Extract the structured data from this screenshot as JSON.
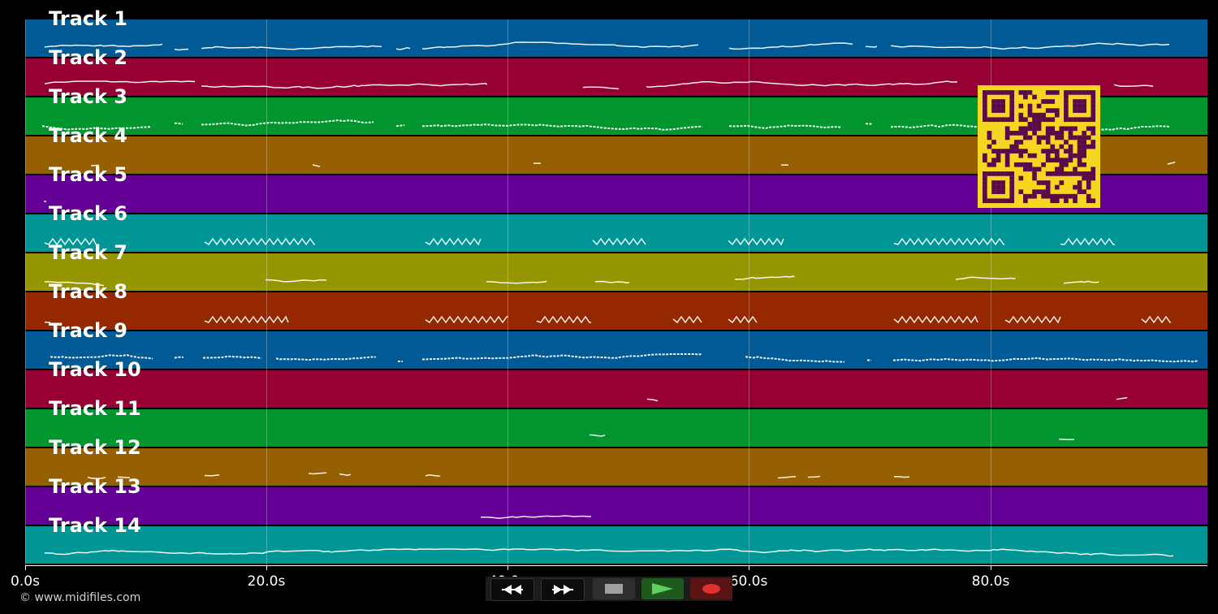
{
  "tracks": [
    {
      "label": "Track 1",
      "color": "#005a96"
    },
    {
      "label": "Track 2",
      "color": "#960032"
    },
    {
      "label": "Track 3",
      "color": "#00962d"
    },
    {
      "label": "Track 4",
      "color": "#965f00"
    },
    {
      "label": "Track 5",
      "color": "#640096"
    },
    {
      "label": "Track 6",
      "color": "#009696"
    },
    {
      "label": "Track 7",
      "color": "#969600"
    },
    {
      "label": "Track 8",
      "color": "#962800"
    },
    {
      "label": "Track 9",
      "color": "#005a96"
    },
    {
      "label": "Track 10",
      "color": "#960032"
    },
    {
      "label": "Track 11",
      "color": "#00962d"
    },
    {
      "label": "Track 12",
      "color": "#965f00"
    },
    {
      "label": "Track 13",
      "color": "#640096"
    },
    {
      "label": "Track 14",
      "color": "#009696"
    }
  ],
  "axis": {
    "ticks": [
      "0.0s",
      "20.0s",
      "40.0s",
      "60.0s",
      "80.0s"
    ],
    "tick_seconds": [
      0,
      20,
      40,
      60,
      80
    ],
    "max_seconds": 98
  },
  "footer": {
    "copyright": "© www.midifiles.com"
  },
  "controls": {
    "rewind_icon": "rewind-icon",
    "fast_forward_icon": "fast-forward-icon",
    "stop_icon": "stop-icon",
    "play_icon": "play-icon",
    "record_icon": "record-icon"
  },
  "qr": {
    "fg": "#5a0a4a",
    "bg": "#f5d722"
  }
}
